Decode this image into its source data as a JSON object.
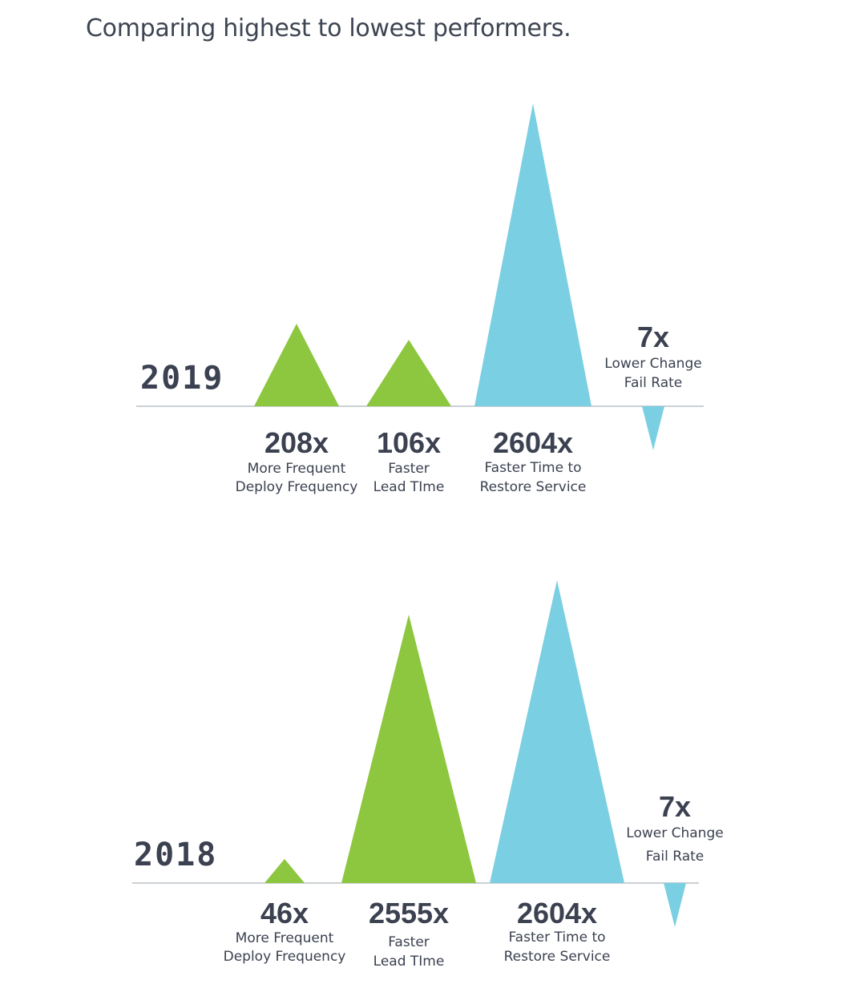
{
  "title": "Comparing highest to lowest performers.",
  "colors": {
    "green": "#8dc63f",
    "blue": "#7bcfe2",
    "text": "#3b4150"
  },
  "chart_data": [
    {
      "type": "bar",
      "year": "2019",
      "metrics": [
        {
          "value": 208,
          "label": "208x",
          "desc": [
            "More Frequent",
            "Deploy Frequency"
          ],
          "color": "green",
          "direction": "up"
        },
        {
          "value": 106,
          "label": "106x",
          "desc": [
            "Faster",
            "Lead TIme"
          ],
          "color": "green",
          "direction": "up"
        },
        {
          "value": 2604,
          "label": "2604x",
          "desc": [
            "Faster Time to",
            "Restore Service"
          ],
          "color": "blue",
          "direction": "up"
        },
        {
          "value": 7,
          "label": "7x",
          "desc": [
            "Lower Change",
            "Fail Rate"
          ],
          "color": "blue",
          "direction": "down"
        }
      ]
    },
    {
      "type": "bar",
      "year": "2018",
      "metrics": [
        {
          "value": 46,
          "label": "46x",
          "desc": [
            "More Frequent",
            "Deploy Frequency"
          ],
          "color": "green",
          "direction": "up"
        },
        {
          "value": 2555,
          "label": "2555x",
          "desc": [
            "Faster",
            "Lead TIme"
          ],
          "color": "green",
          "direction": "up"
        },
        {
          "value": 2604,
          "label": "2604x",
          "desc": [
            "Faster Time to",
            "Restore Service"
          ],
          "color": "blue",
          "direction": "up"
        },
        {
          "value": 7,
          "label": "7x",
          "desc": [
            "Lower Change",
            "Fail Rate"
          ],
          "color": "blue",
          "direction": "down"
        }
      ]
    }
  ]
}
